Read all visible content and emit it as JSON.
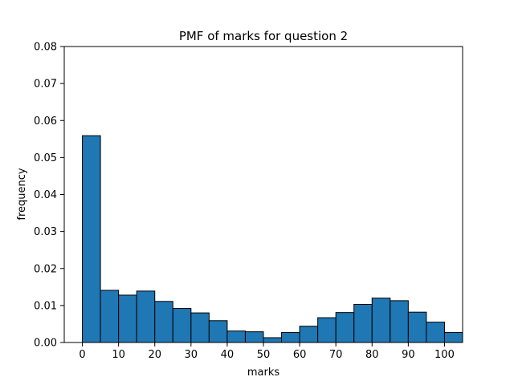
{
  "chart_data": {
    "type": "bar",
    "title": "PMF of marks for question 2",
    "xlabel": "marks",
    "ylabel": "frequency",
    "xlim": [
      -5,
      105
    ],
    "ylim": [
      0,
      0.08
    ],
    "xticks": [
      "0",
      "10",
      "20",
      "30",
      "40",
      "50",
      "60",
      "70",
      "80",
      "90",
      "100"
    ],
    "yticks": [
      "0.00",
      "0.01",
      "0.02",
      "0.03",
      "0.04",
      "0.05",
      "0.06",
      "0.07",
      "0.08"
    ],
    "grid": false,
    "bar_color": "#1f77b4",
    "edge_color": "#000000",
    "bin_edges": [
      0,
      5,
      10,
      15,
      20,
      25,
      30,
      35,
      40,
      45,
      50,
      55,
      60,
      65,
      70,
      75,
      80,
      85,
      90,
      95,
      100
    ],
    "values": [
      0.0559,
      0.0141,
      0.0128,
      0.0139,
      0.0111,
      0.0092,
      0.008,
      0.0059,
      0.0031,
      0.0029,
      0.0013,
      0.0027,
      0.0044,
      0.0067,
      0.0081,
      0.0103,
      0.012,
      0.0113,
      0.0082,
      0.0055,
      0.0027
    ]
  }
}
